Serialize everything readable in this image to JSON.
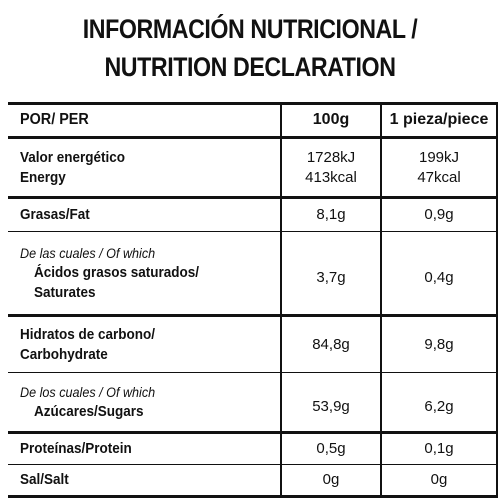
{
  "header": {
    "title": [
      "INFORMACIÓN NUTRICIONAL /",
      "NUTRITION DECLARATION"
    ]
  },
  "table": {
    "columns": [
      "POR/ PER",
      "100g",
      "1 pieza/piece"
    ],
    "rows": [
      {
        "label": [
          "Valor energético",
          "Energy"
        ],
        "per_100g": [
          "1728kJ",
          "413kcal"
        ],
        "per_piece": [
          "199kJ",
          "47kcal"
        ]
      },
      {
        "label": [
          "Grasas/Fat"
        ],
        "per_100g": [
          "8,1g"
        ],
        "per_piece": [
          "0,9g"
        ]
      },
      {
        "note": "De las cuales / Of which",
        "label": [
          "Ácidos grasos saturados/",
          "Saturates"
        ],
        "per_100g": [
          "3,7g"
        ],
        "per_piece": [
          "0,4g"
        ]
      },
      {
        "label": [
          "Hidratos de carbono/",
          "Carbohydrate"
        ],
        "per_100g": [
          "84,8g"
        ],
        "per_piece": [
          "9,8g"
        ]
      },
      {
        "note": "De los cuales / Of which",
        "label": [
          "Azúcares/Sugars"
        ],
        "per_100g": [
          "53,9g"
        ],
        "per_piece": [
          "6,2g"
        ]
      },
      {
        "label": [
          "Proteínas/Protein"
        ],
        "per_100g": [
          "0,5g"
        ],
        "per_piece": [
          "0,1g"
        ]
      },
      {
        "label": [
          "Sal/Salt"
        ],
        "per_100g": [
          "0g"
        ],
        "per_piece": [
          "0g"
        ]
      }
    ]
  }
}
